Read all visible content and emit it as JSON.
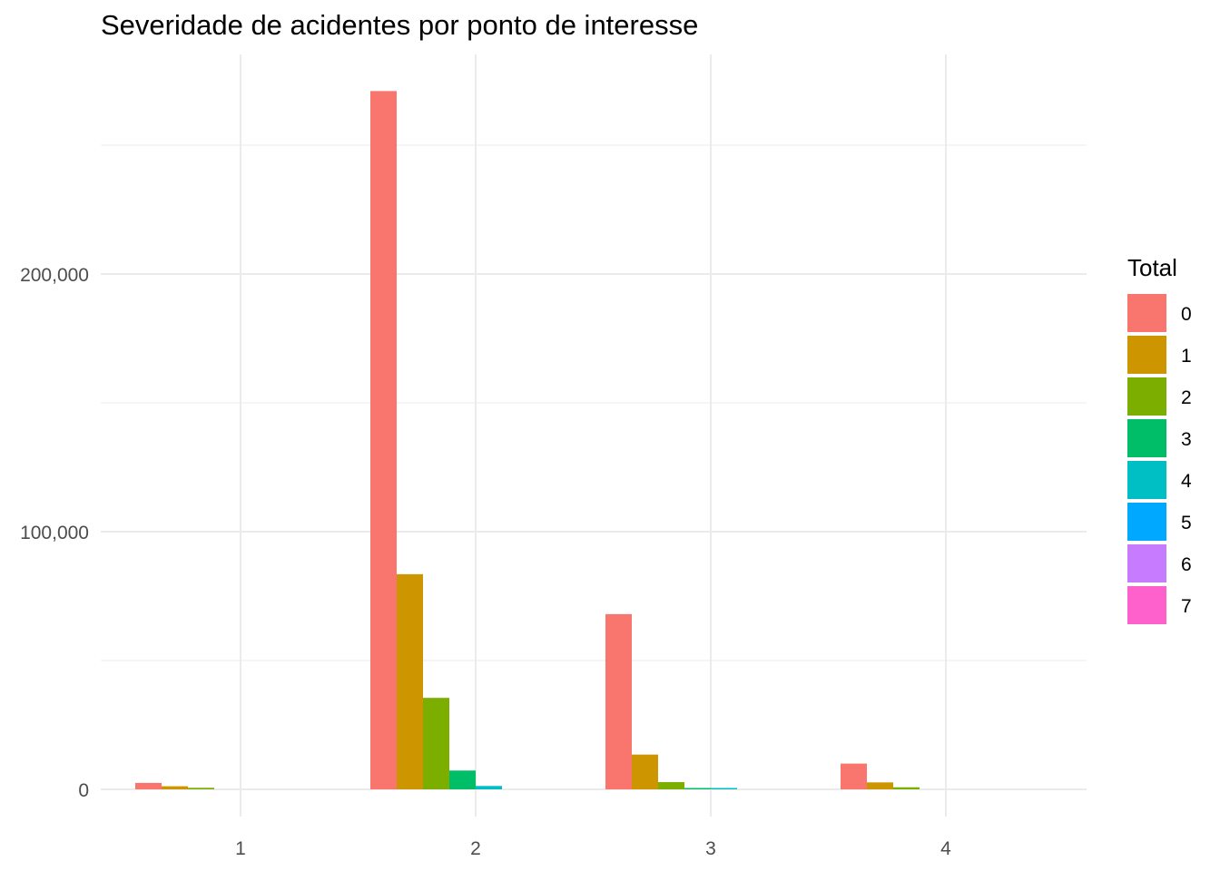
{
  "chart_data": {
    "type": "bar",
    "title": "Severidade de acidentes por ponto de interesse",
    "xlabel": "",
    "ylabel": "",
    "categories": [
      "1",
      "2",
      "3",
      "4"
    ],
    "ylim": [
      -14000,
      272000
    ],
    "y_ticks": [
      0,
      100000,
      200000
    ],
    "y_tick_labels": [
      "0",
      "100,000",
      "200,000"
    ],
    "grid": true,
    "legend": {
      "title": "Total",
      "position": "right"
    },
    "series": [
      {
        "name": "0",
        "color": "#F8766D",
        "values": [
          2500,
          271000,
          68000,
          10000
        ]
      },
      {
        "name": "1",
        "color": "#CD9600",
        "values": [
          1200,
          83500,
          13500,
          2700
        ]
      },
      {
        "name": "2",
        "color": "#7CAE00",
        "values": [
          600,
          35500,
          2800,
          800
        ]
      },
      {
        "name": "3",
        "color": "#00BE67",
        "values": [
          0,
          7300,
          400,
          0
        ]
      },
      {
        "name": "4",
        "color": "#00BFC4",
        "values": [
          0,
          1300,
          100,
          0
        ]
      },
      {
        "name": "5",
        "color": "#00A9FF",
        "values": [
          0,
          0,
          0,
          0
        ]
      },
      {
        "name": "6",
        "color": "#C77CFF",
        "values": [
          0,
          0,
          0,
          0
        ]
      },
      {
        "name": "7",
        "color": "#FF61CC",
        "values": [
          0,
          0,
          0,
          0
        ]
      }
    ]
  }
}
